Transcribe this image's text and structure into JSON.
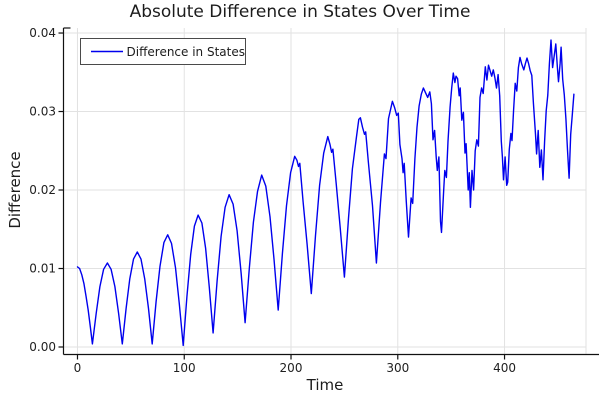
{
  "title": "Absolute Difference in States Over Time",
  "legend": {
    "label": "Difference in States"
  },
  "colors": {
    "line": "#0000EE",
    "grid": "#E2E2E2",
    "axis": "#111111",
    "text": "#1F1F1F",
    "legend_border": "#4A4A4A",
    "background": "#FFFFFF"
  },
  "chart_data": {
    "type": "line",
    "title": "Absolute Difference in States Over Time",
    "xlabel": "Time",
    "ylabel": "Difference",
    "series_name": "Difference in States",
    "line_color": "#0000EE",
    "grid": true,
    "legend_position": "top-left",
    "xticks": [
      0,
      100,
      200,
      300,
      400
    ],
    "xtick_labels": [
      "0",
      "100",
      "200",
      "300",
      "400"
    ],
    "yticks": [
      0,
      0.01,
      0.02,
      0.03,
      0.04
    ],
    "ytick_labels": [
      "0.00",
      "0.01",
      "0.02",
      "0.03",
      "0.04"
    ],
    "xlim": [
      -13.1,
      476.3
    ],
    "ylim": [
      -0.000955,
      0.04064
    ],
    "points": [
      [
        0,
        0.0102
      ],
      [
        2,
        0.01
      ],
      [
        4,
        0.0092
      ],
      [
        6,
        0.0081
      ],
      [
        8,
        0.0065
      ],
      [
        10,
        0.0047
      ],
      [
        12,
        0.0026
      ],
      [
        14,
        0.0004
      ],
      [
        17.5,
        0.0043
      ],
      [
        21,
        0.0077
      ],
      [
        24.5,
        0.0099
      ],
      [
        28,
        0.0107
      ],
      [
        31.5,
        0.0099
      ],
      [
        35,
        0.0077
      ],
      [
        38.5,
        0.0043
      ],
      [
        42,
        0.0004
      ],
      [
        45.5,
        0.0049
      ],
      [
        49,
        0.0087
      ],
      [
        52.5,
        0.0112
      ],
      [
        56,
        0.0121
      ],
      [
        59.5,
        0.0112
      ],
      [
        63,
        0.0087
      ],
      [
        66.5,
        0.0049
      ],
      [
        70,
        0.0004
      ],
      [
        73.6,
        0.0058
      ],
      [
        77.3,
        0.0103
      ],
      [
        80.9,
        0.0133
      ],
      [
        84.5,
        0.0143
      ],
      [
        88.1,
        0.0132
      ],
      [
        91.8,
        0.0101
      ],
      [
        95.4,
        0.0055
      ],
      [
        99,
        0.0002
      ],
      [
        102.5,
        0.0064
      ],
      [
        106,
        0.0118
      ],
      [
        109.5,
        0.0154
      ],
      [
        113,
        0.0168
      ],
      [
        116.5,
        0.0158
      ],
      [
        120,
        0.0126
      ],
      [
        123.5,
        0.0076
      ],
      [
        127,
        0.0018
      ],
      [
        130.8,
        0.0084
      ],
      [
        134.5,
        0.0141
      ],
      [
        138.3,
        0.0178
      ],
      [
        142,
        0.0194
      ],
      [
        145.8,
        0.0182
      ],
      [
        149.5,
        0.0148
      ],
      [
        153.3,
        0.0093
      ],
      [
        157,
        0.0031
      ],
      [
        160.9,
        0.01
      ],
      [
        164.8,
        0.0159
      ],
      [
        168.6,
        0.0198
      ],
      [
        172.5,
        0.0219
      ],
      [
        176.4,
        0.0205
      ],
      [
        180.3,
        0.0166
      ],
      [
        184.1,
        0.0112
      ],
      [
        188,
        0.0047
      ],
      [
        191.9,
        0.0119
      ],
      [
        195.8,
        0.018
      ],
      [
        199.6,
        0.0222
      ],
      [
        203.5,
        0.0243
      ],
      [
        205.5,
        0.0238
      ],
      [
        207,
        0.023
      ],
      [
        208.2,
        0.0234
      ],
      [
        211.3,
        0.0185
      ],
      [
        215.1,
        0.0131
      ],
      [
        219,
        0.0068
      ],
      [
        222.9,
        0.0142
      ],
      [
        226.8,
        0.0206
      ],
      [
        230.6,
        0.0247
      ],
      [
        234.5,
        0.0268
      ],
      [
        236.5,
        0.0258
      ],
      [
        238,
        0.0248
      ],
      [
        239.2,
        0.0252
      ],
      [
        242.3,
        0.0208
      ],
      [
        246.1,
        0.0152
      ],
      [
        250,
        0.0089
      ],
      [
        253.8,
        0.0164
      ],
      [
        257.5,
        0.0227
      ],
      [
        261.3,
        0.0268
      ],
      [
        263.5,
        0.029
      ],
      [
        265,
        0.0292
      ],
      [
        267,
        0.028
      ],
      [
        268.8,
        0.0271
      ],
      [
        270,
        0.0274
      ],
      [
        272.5,
        0.0235
      ],
      [
        276.3,
        0.018
      ],
      [
        280,
        0.0107
      ],
      [
        283.8,
        0.0184
      ],
      [
        287.5,
        0.0246
      ],
      [
        289,
        0.024
      ],
      [
        291.3,
        0.0291
      ],
      [
        295,
        0.0313
      ],
      [
        297,
        0.0305
      ],
      [
        299,
        0.0295
      ],
      [
        300.5,
        0.0298
      ],
      [
        302,
        0.0258
      ],
      [
        304,
        0.024
      ],
      [
        305,
        0.0222
      ],
      [
        306,
        0.0234
      ],
      [
        308,
        0.0185
      ],
      [
        310,
        0.014
      ],
      [
        312.5,
        0.019
      ],
      [
        314,
        0.0183
      ],
      [
        316,
        0.024
      ],
      [
        318,
        0.028
      ],
      [
        320,
        0.0307
      ],
      [
        322,
        0.0322
      ],
      [
        324,
        0.033
      ],
      [
        326,
        0.0324
      ],
      [
        328,
        0.0318
      ],
      [
        330,
        0.0325
      ],
      [
        331.5,
        0.031
      ],
      [
        333,
        0.0264
      ],
      [
        334.5,
        0.0276
      ],
      [
        336,
        0.0242
      ],
      [
        337,
        0.0225
      ],
      [
        338.5,
        0.0242
      ],
      [
        340,
        0.016
      ],
      [
        341,
        0.0146
      ],
      [
        343,
        0.02
      ],
      [
        344,
        0.0225
      ],
      [
        345.5,
        0.0216
      ],
      [
        347,
        0.0262
      ],
      [
        349,
        0.0306
      ],
      [
        350.5,
        0.033
      ],
      [
        352,
        0.0349
      ],
      [
        353.5,
        0.0337
      ],
      [
        354.5,
        0.0345
      ],
      [
        356,
        0.0342
      ],
      [
        357.5,
        0.032
      ],
      [
        358.5,
        0.033
      ],
      [
        360,
        0.0289
      ],
      [
        361.5,
        0.0299
      ],
      [
        363,
        0.0247
      ],
      [
        364,
        0.0259
      ],
      [
        366,
        0.02
      ],
      [
        367,
        0.0222
      ],
      [
        368,
        0.0178
      ],
      [
        369.5,
        0.0225
      ],
      [
        371,
        0.02
      ],
      [
        372.5,
        0.025
      ],
      [
        374,
        0.0264
      ],
      [
        375.5,
        0.0256
      ],
      [
        377,
        0.0318
      ],
      [
        378.5,
        0.033
      ],
      [
        380,
        0.0323
      ],
      [
        382,
        0.0357
      ],
      [
        383.5,
        0.034
      ],
      [
        385,
        0.0359
      ],
      [
        386.5,
        0.0352
      ],
      [
        388,
        0.0345
      ],
      [
        389.5,
        0.0353
      ],
      [
        391,
        0.0343
      ],
      [
        392.5,
        0.033
      ],
      [
        394,
        0.0347
      ],
      [
        395.5,
        0.032
      ],
      [
        397,
        0.0262
      ],
      [
        398,
        0.0242
      ],
      [
        399,
        0.0213
      ],
      [
        400.5,
        0.0242
      ],
      [
        402,
        0.0206
      ],
      [
        403,
        0.021
      ],
      [
        404.5,
        0.0252
      ],
      [
        406,
        0.0272
      ],
      [
        407,
        0.0263
      ],
      [
        408.5,
        0.0302
      ],
      [
        410,
        0.0336
      ],
      [
        411.5,
        0.0326
      ],
      [
        413,
        0.0356
      ],
      [
        414.5,
        0.0369
      ],
      [
        416,
        0.0361
      ],
      [
        418,
        0.0353
      ],
      [
        419.5,
        0.0361
      ],
      [
        421,
        0.0368
      ],
      [
        422.5,
        0.0361
      ],
      [
        424,
        0.0352
      ],
      [
        425.5,
        0.0346
      ],
      [
        427,
        0.0311
      ],
      [
        428,
        0.0292
      ],
      [
        429,
        0.0271
      ],
      [
        430,
        0.0246
      ],
      [
        431.5,
        0.0276
      ],
      [
        433,
        0.0229
      ],
      [
        434.5,
        0.0251
      ],
      [
        436,
        0.0213
      ],
      [
        437.5,
        0.0262
      ],
      [
        439,
        0.0301
      ],
      [
        440.5,
        0.0321
      ],
      [
        442,
        0.0361
      ],
      [
        443.5,
        0.0391
      ],
      [
        445,
        0.0356
      ],
      [
        446.5,
        0.0371
      ],
      [
        448,
        0.0386
      ],
      [
        449.5,
        0.0356
      ],
      [
        450.5,
        0.0338
      ],
      [
        452,
        0.0361
      ],
      [
        453,
        0.0382
      ],
      [
        454.5,
        0.0341
      ],
      [
        456,
        0.0321
      ],
      [
        457.5,
        0.0291
      ],
      [
        459,
        0.0251
      ],
      [
        460.5,
        0.0215
      ],
      [
        462,
        0.0271
      ],
      [
        463.5,
        0.0296
      ],
      [
        465,
        0.0322
      ]
    ]
  }
}
